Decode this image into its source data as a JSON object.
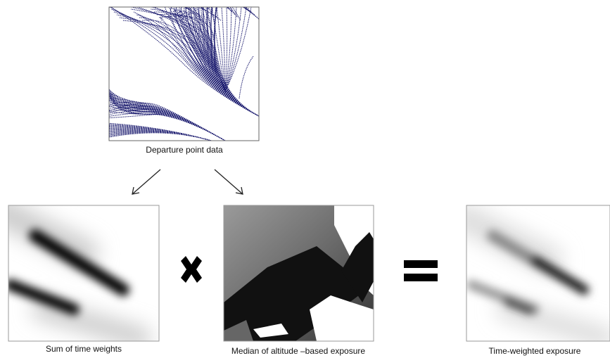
{
  "nodes": [
    {
      "label": "Departure point data"
    },
    {
      "label": "Sum of time weights"
    },
    {
      "label": "Median of altitude –based exposure"
    },
    {
      "label": "Time-weighted exposure"
    }
  ]
}
